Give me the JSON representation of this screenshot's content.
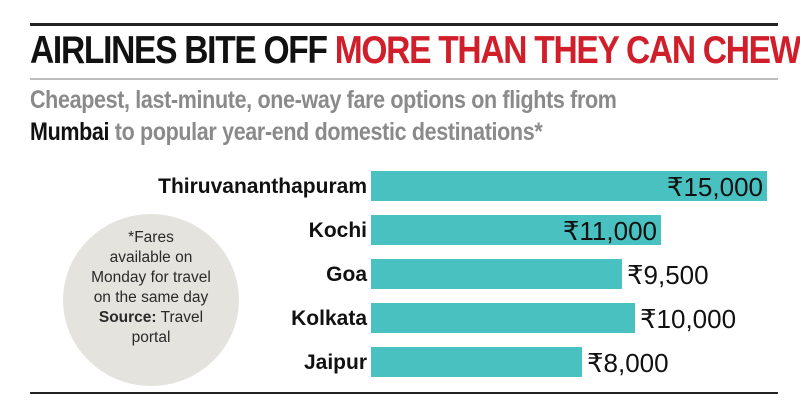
{
  "headline": {
    "part1": "AIRLINES BITE OFF ",
    "part2": "MORE THAN THEY CAN CHEW"
  },
  "subtitle": {
    "before": "Cheapest, last-minute, one-way fare options on flights from",
    "highlight": "Mumbai",
    "after": " to popular year-end domestic destinations*"
  },
  "note": {
    "line1": "*Fares",
    "line2": "available on",
    "line3": "Monday for travel",
    "line4": "on the same day",
    "source_label": "Source:",
    "source_value": " Travel",
    "line6": "portal"
  },
  "colors": {
    "bar": "#49c1c1",
    "accent": "#d01f2b",
    "bubble": "#e4e3de"
  },
  "chart_data": {
    "type": "bar",
    "orientation": "horizontal",
    "title": "AIRLINES BITE OFF MORE THAN THEY CAN CHEW",
    "subtitle": "Cheapest, last-minute, one-way fare options on flights from Mumbai to popular year-end domestic destinations*",
    "categories": [
      "Thiruvananthapuram",
      "Kochi",
      "Goa",
      "Kolkata",
      "Jaipur"
    ],
    "values": [
      15000,
      11000,
      9500,
      10000,
      8000
    ],
    "value_labels": [
      "₹15,000",
      "₹11,000",
      "₹9,500",
      "₹10,000",
      "₹8,000"
    ],
    "unit": "₹",
    "xlim": [
      0,
      15000
    ],
    "xlabel": "",
    "ylabel": "",
    "grid": false,
    "legend": "none"
  }
}
